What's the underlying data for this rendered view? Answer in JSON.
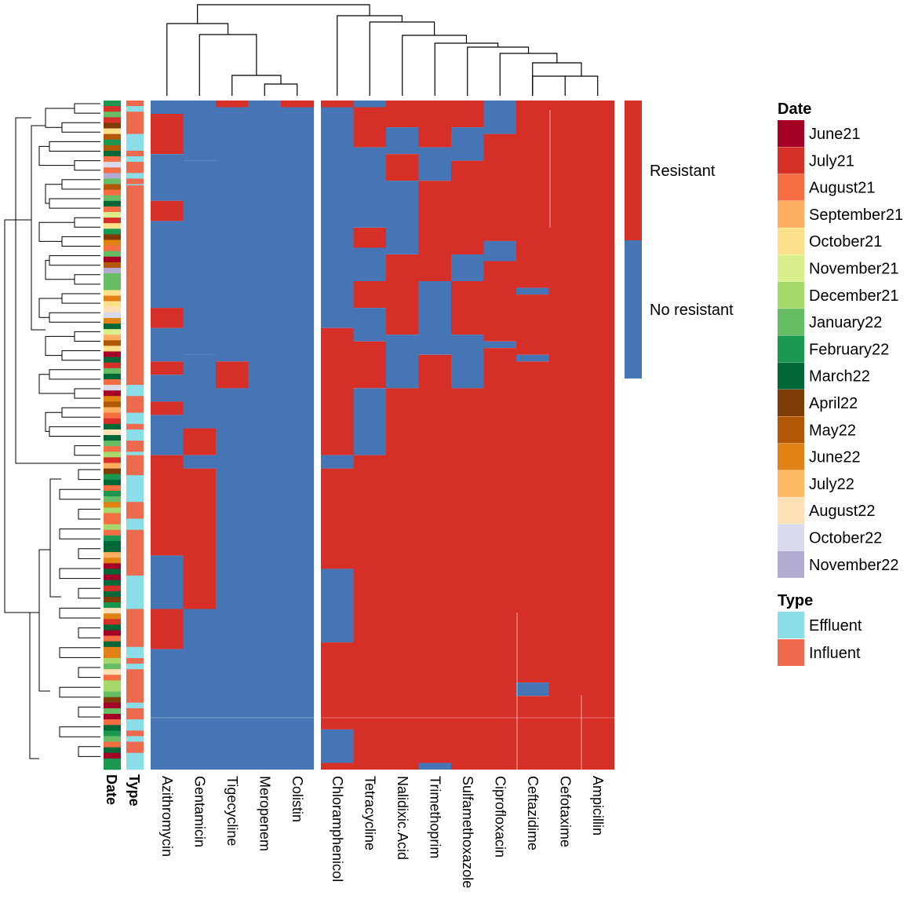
{
  "colors": {
    "resistant": "#D62F27",
    "no_resistant": "#4575B4",
    "effluent": "#8ADEE8",
    "influent": "#EE6A4F"
  },
  "chart_data": {
    "type": "heatmap",
    "title": "",
    "row_annotation_labels": [
      "Date",
      "Type"
    ],
    "column_groups": [
      [
        "Azithromycin",
        "Gentamicin",
        "Tigecycline",
        "Meropenem",
        "Colistin"
      ],
      [
        "Chloramphenicol",
        "Tetracycline",
        "Nalidixic.Acid",
        "Trimethoprim",
        "Sulfamethoxazole",
        "Ciprofloxacin",
        "Ceftazidime",
        "Cefotaxime",
        "Ampicillin"
      ]
    ],
    "value_legend": [
      {
        "label": "Resistant",
        "value": 1
      },
      {
        "label": "No resistant",
        "value": 0
      }
    ],
    "date_legend": {
      "title": "Date",
      "entries": [
        {
          "label": "June21",
          "color": "#A50026"
        },
        {
          "label": "July21",
          "color": "#D73027"
        },
        {
          "label": "August21",
          "color": "#F46D43"
        },
        {
          "label": "September21",
          "color": "#FDAE61"
        },
        {
          "label": "October21",
          "color": "#FEE08B"
        },
        {
          "label": "November21",
          "color": "#D9EF8B"
        },
        {
          "label": "December21",
          "color": "#A6D96A"
        },
        {
          "label": "January22",
          "color": "#66BD63"
        },
        {
          "label": "February22",
          "color": "#1A9850"
        },
        {
          "label": "March22",
          "color": "#006837"
        },
        {
          "label": "April22",
          "color": "#7F3B08"
        },
        {
          "label": "May22",
          "color": "#B35806"
        },
        {
          "label": "June22",
          "color": "#E08214"
        },
        {
          "label": "July22",
          "color": "#FDB863"
        },
        {
          "label": "August22",
          "color": "#FEE0B6"
        },
        {
          "label": "October22",
          "color": "#D8DAEB"
        },
        {
          "label": "November22",
          "color": "#B2ABD2"
        }
      ]
    },
    "type_legend": {
      "title": "Type",
      "entries": [
        {
          "label": "Effluent",
          "color": "#8ADEE8"
        },
        {
          "label": "Influent",
          "color": "#EE6A4F"
        }
      ]
    },
    "column_resistance_pattern": {
      "Azithromycin": [
        [
          0.0,
          0.02,
          0
        ],
        [
          0.02,
          0.08,
          1
        ],
        [
          0.08,
          0.15,
          0
        ],
        [
          0.15,
          0.18,
          1
        ],
        [
          0.18,
          0.31,
          0
        ],
        [
          0.31,
          0.34,
          1
        ],
        [
          0.34,
          0.39,
          0
        ],
        [
          0.39,
          0.41,
          1
        ],
        [
          0.41,
          0.45,
          0
        ],
        [
          0.45,
          0.47,
          1
        ],
        [
          0.47,
          0.53,
          0
        ],
        [
          0.53,
          0.68,
          1
        ],
        [
          0.68,
          0.76,
          0
        ],
        [
          0.76,
          0.82,
          1
        ],
        [
          0.82,
          1.0,
          0
        ]
      ],
      "Gentamicin": [
        [
          0.0,
          0.02,
          0
        ],
        [
          0.02,
          0.09,
          0
        ],
        [
          0.09,
          0.38,
          0
        ],
        [
          0.38,
          0.49,
          0
        ],
        [
          0.49,
          0.53,
          1
        ],
        [
          0.53,
          0.55,
          0
        ],
        [
          0.55,
          0.76,
          1
        ],
        [
          0.76,
          1.0,
          0
        ]
      ],
      "Tigecycline": [
        [
          0.0,
          0.01,
          1
        ],
        [
          0.01,
          0.39,
          0
        ],
        [
          0.39,
          0.43,
          1
        ],
        [
          0.43,
          1.0,
          0
        ]
      ],
      "Meropenem": [
        [
          0.0,
          1.0,
          0
        ]
      ],
      "Colistin": [
        [
          0.0,
          0.01,
          1
        ],
        [
          0.01,
          1.0,
          0
        ]
      ],
      "Chloramphenicol": [
        [
          0.0,
          0.01,
          1
        ],
        [
          0.01,
          0.34,
          0
        ],
        [
          0.34,
          0.53,
          1
        ],
        [
          0.53,
          0.55,
          0
        ],
        [
          0.55,
          0.7,
          1
        ],
        [
          0.7,
          0.81,
          0
        ],
        [
          0.81,
          0.94,
          1
        ],
        [
          0.94,
          0.99,
          0
        ],
        [
          0.99,
          1.0,
          1
        ]
      ],
      "Tetracycline": [
        [
          0.0,
          0.01,
          0
        ],
        [
          0.01,
          0.07,
          1
        ],
        [
          0.07,
          0.19,
          0
        ],
        [
          0.19,
          0.22,
          1
        ],
        [
          0.22,
          0.27,
          0
        ],
        [
          0.27,
          0.31,
          1
        ],
        [
          0.31,
          0.36,
          0
        ],
        [
          0.36,
          0.43,
          1
        ],
        [
          0.43,
          0.53,
          0
        ],
        [
          0.53,
          1.0,
          1
        ]
      ],
      "Nalidixic.Acid": [
        [
          0.0,
          0.04,
          1
        ],
        [
          0.04,
          0.08,
          0
        ],
        [
          0.08,
          0.12,
          1
        ],
        [
          0.12,
          0.23,
          0
        ],
        [
          0.23,
          0.35,
          1
        ],
        [
          0.35,
          0.43,
          0
        ],
        [
          0.43,
          1.0,
          1
        ]
      ],
      "Trimethoprim": [
        [
          0.0,
          0.07,
          1
        ],
        [
          0.07,
          0.12,
          0
        ],
        [
          0.12,
          0.27,
          1
        ],
        [
          0.27,
          0.38,
          0
        ],
        [
          0.38,
          0.99,
          1
        ],
        [
          0.99,
          1.0,
          0
        ]
      ],
      "Sulfamethoxazole": [
        [
          0.0,
          0.04,
          1
        ],
        [
          0.04,
          0.09,
          0
        ],
        [
          0.09,
          0.23,
          1
        ],
        [
          0.23,
          0.27,
          0
        ],
        [
          0.27,
          0.35,
          1
        ],
        [
          0.35,
          0.43,
          0
        ],
        [
          0.43,
          1.0,
          1
        ]
      ],
      "Ciprofloxacin": [
        [
          0.0,
          0.05,
          0
        ],
        [
          0.05,
          0.21,
          1
        ],
        [
          0.21,
          0.24,
          0
        ],
        [
          0.24,
          0.36,
          1
        ],
        [
          0.36,
          0.37,
          0
        ],
        [
          0.37,
          1.0,
          1
        ]
      ],
      "Ceftazidime": [
        [
          0.0,
          0.28,
          1
        ],
        [
          0.28,
          0.29,
          0
        ],
        [
          0.29,
          0.38,
          1
        ],
        [
          0.38,
          0.39,
          0
        ],
        [
          0.39,
          0.87,
          1
        ],
        [
          0.87,
          0.89,
          0
        ],
        [
          0.89,
          1.0,
          1
        ]
      ],
      "Cefotaxime": [
        [
          0.0,
          1.0,
          1
        ]
      ],
      "Ampicillin": [
        [
          0.0,
          1.0,
          1
        ]
      ]
    }
  }
}
